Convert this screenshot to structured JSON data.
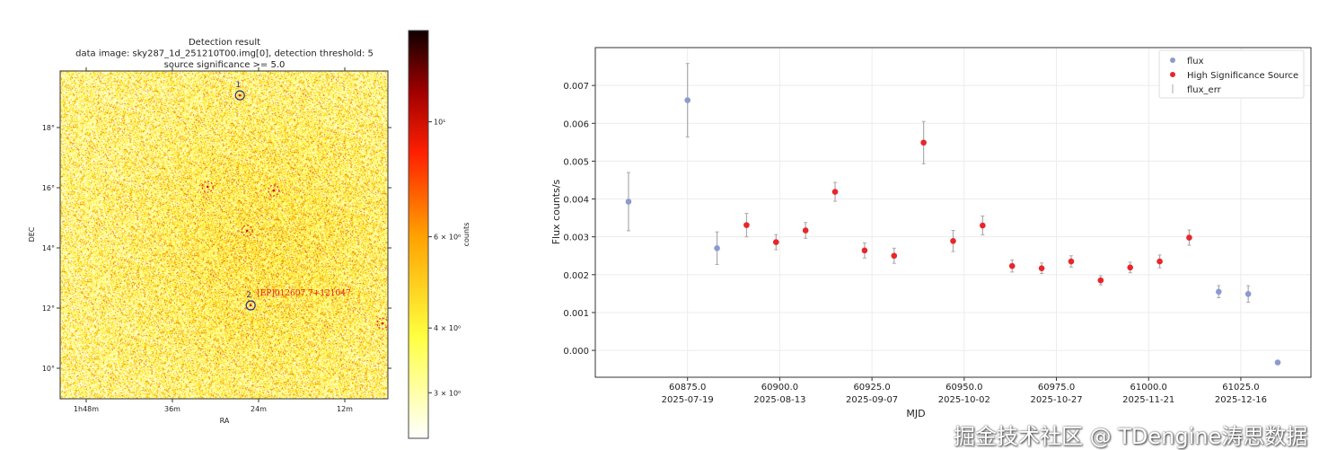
{
  "chart_data": [
    {
      "type": "heatmap",
      "title_lines": [
        "Detection result",
        "data image: sky287_1d_251210T00.img[0], detection threshold: 5",
        "source significance >= 5.0"
      ],
      "xlabel": "RA",
      "ylabel": "DEC",
      "xticks": [
        {
          "v": 108,
          "label": "1h48m"
        },
        {
          "v": 96,
          "label": "36m"
        },
        {
          "v": 84,
          "label": "24m"
        },
        {
          "v": 72,
          "label": "12m"
        }
      ],
      "yticks": [
        {
          "v": 18,
          "label": "18°"
        },
        {
          "v": 16,
          "label": "16°"
        },
        {
          "v": 14,
          "label": "14°"
        },
        {
          "v": 12,
          "label": "12°"
        },
        {
          "v": 10,
          "label": "10°"
        }
      ],
      "colormap": "afmhot_r",
      "colorbar": {
        "label": "counts",
        "scale": "log",
        "ticks": [
          {
            "v": 10,
            "label": "10¹"
          },
          {
            "v": 6,
            "label": "6 × 10⁰"
          },
          {
            "v": 4,
            "label": "4 × 10⁰"
          },
          {
            "v": 3,
            "label": "3 × 10⁰"
          }
        ]
      },
      "sources": [
        {
          "id": "1",
          "label": "1",
          "ra": 86.6,
          "dec": 19.07,
          "style": "solid",
          "color": "#2a2a9a"
        },
        {
          "id": "2",
          "label": "2",
          "name": "[EP]012607.7+121047",
          "ra": 85.1,
          "dec": 12.09,
          "style": "solid",
          "color": "#2a2a9a"
        },
        {
          "ra": 91.1,
          "dec": 16.03,
          "style": "dashed",
          "color": "#e03030"
        },
        {
          "ra": 81.9,
          "dec": 15.91,
          "style": "dashed",
          "color": "#e03030"
        },
        {
          "ra": 85.6,
          "dec": 14.57,
          "style": "dashed",
          "color": "#e03030"
        },
        {
          "ra": 66.75,
          "dec": 11.49,
          "style": "dashed",
          "color": "#e03030"
        }
      ]
    },
    {
      "type": "scatter",
      "xlabel": "MJD",
      "ylabel": "Flux counts/s",
      "xlim": [
        60850,
        61044
      ],
      "ylim": [
        -0.00071,
        0.008
      ],
      "grid": true,
      "legend_position": "top-right",
      "xticks": [
        {
          "v": 60875,
          "label": "60875.0",
          "date": "2025-07-19"
        },
        {
          "v": 60900,
          "label": "60900.0",
          "date": "2025-08-13"
        },
        {
          "v": 60925,
          "label": "60925.0",
          "date": "2025-09-07"
        },
        {
          "v": 60950,
          "label": "60950.0",
          "date": "2025-10-02"
        },
        {
          "v": 60975,
          "label": "60975.0",
          "date": "2025-10-27"
        },
        {
          "v": 61000,
          "label": "61000.0",
          "date": "2025-11-21"
        },
        {
          "v": 61025,
          "label": "61025.0",
          "date": "2025-12-16"
        }
      ],
      "yticks": [
        0,
        0.001,
        0.002,
        0.003,
        0.004,
        0.005,
        0.006,
        0.007
      ],
      "legend": [
        {
          "name": "flux",
          "color": "#8c9ad0",
          "marker": "dot"
        },
        {
          "name": "High Significance Source",
          "color": "#e8262a",
          "marker": "dot"
        },
        {
          "name": "flux_err",
          "color": "#aaaaaa",
          "marker": "errorbar"
        }
      ],
      "colors": {
        "flux": "#8c9ad0",
        "high": "#e8262a",
        "err": "#aaaaaa"
      },
      "points": [
        {
          "x": 60859,
          "y": 0.00393,
          "err": 0.00077,
          "high": false
        },
        {
          "x": 60875,
          "y": 0.00661,
          "err": 0.00097,
          "high": false
        },
        {
          "x": 60883,
          "y": 0.0027,
          "err": 0.00043,
          "high": false
        },
        {
          "x": 60891,
          "y": 0.00331,
          "err": 0.00031,
          "high": true
        },
        {
          "x": 60899,
          "y": 0.00286,
          "err": 0.0002,
          "high": true
        },
        {
          "x": 60907,
          "y": 0.00317,
          "err": 0.00021,
          "high": true
        },
        {
          "x": 60915,
          "y": 0.00419,
          "err": 0.00025,
          "high": true
        },
        {
          "x": 60923,
          "y": 0.00264,
          "err": 0.0002,
          "high": true
        },
        {
          "x": 60931,
          "y": 0.0025,
          "err": 0.0002,
          "high": true
        },
        {
          "x": 60939,
          "y": 0.00549,
          "err": 0.00056,
          "high": true
        },
        {
          "x": 60947,
          "y": 0.00289,
          "err": 0.00028,
          "high": true
        },
        {
          "x": 60955,
          "y": 0.0033,
          "err": 0.00025,
          "high": true
        },
        {
          "x": 60963,
          "y": 0.00223,
          "err": 0.00016,
          "high": true
        },
        {
          "x": 60971,
          "y": 0.00217,
          "err": 0.00014,
          "high": true
        },
        {
          "x": 60979,
          "y": 0.00235,
          "err": 0.00015,
          "high": true
        },
        {
          "x": 60987,
          "y": 0.00185,
          "err": 0.00012,
          "high": true
        },
        {
          "x": 60995,
          "y": 0.00219,
          "err": 0.00014,
          "high": true
        },
        {
          "x": 61003,
          "y": 0.00235,
          "err": 0.00017,
          "high": true
        },
        {
          "x": 61011,
          "y": 0.00298,
          "err": 0.0002,
          "high": true
        },
        {
          "x": 61019,
          "y": 0.00155,
          "err": 0.00016,
          "high": false
        },
        {
          "x": 61027,
          "y": 0.00149,
          "err": 0.00022,
          "high": false
        },
        {
          "x": 61035,
          "y": -0.00032,
          "err": 0,
          "high": false
        }
      ]
    }
  ],
  "watermark": "掘金技术社区 @ TDengine涛思数据"
}
